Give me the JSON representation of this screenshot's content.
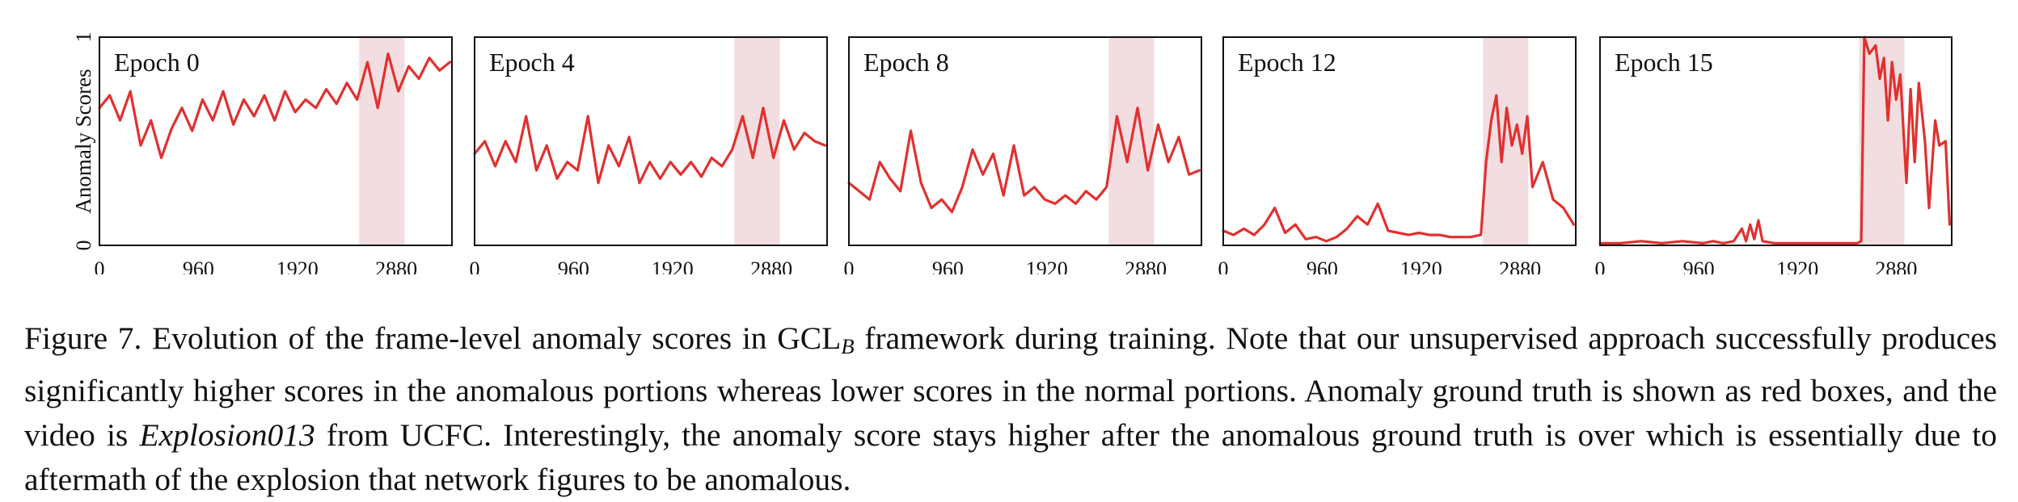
{
  "chart_data": [
    {
      "type": "line",
      "title": "Epoch 0",
      "ylabel": "Anomaly Scores",
      "ylim": [
        0,
        1
      ],
      "yticks": [
        "0",
        "1"
      ],
      "xlim": [
        0,
        3420
      ],
      "xticks": [
        0,
        960,
        1920,
        2880
      ],
      "xtick_labels": [
        "0",
        "960",
        "1920",
        "2880"
      ],
      "anomaly_region": [
        2520,
        2960
      ],
      "series": [
        {
          "values": [
            [
              0,
              0.66
            ],
            [
              100,
              0.72
            ],
            [
              200,
              0.6
            ],
            [
              300,
              0.74
            ],
            [
              400,
              0.48
            ],
            [
              500,
              0.6
            ],
            [
              600,
              0.42
            ],
            [
              700,
              0.56
            ],
            [
              800,
              0.66
            ],
            [
              900,
              0.55
            ],
            [
              1000,
              0.7
            ],
            [
              1100,
              0.6
            ],
            [
              1200,
              0.74
            ],
            [
              1300,
              0.58
            ],
            [
              1400,
              0.7
            ],
            [
              1500,
              0.62
            ],
            [
              1600,
              0.72
            ],
            [
              1700,
              0.6
            ],
            [
              1800,
              0.74
            ],
            [
              1900,
              0.64
            ],
            [
              2000,
              0.7
            ],
            [
              2100,
              0.66
            ],
            [
              2200,
              0.75
            ],
            [
              2300,
              0.68
            ],
            [
              2400,
              0.78
            ],
            [
              2500,
              0.7
            ],
            [
              2600,
              0.88
            ],
            [
              2700,
              0.66
            ],
            [
              2800,
              0.92
            ],
            [
              2900,
              0.74
            ],
            [
              3000,
              0.86
            ],
            [
              3100,
              0.8
            ],
            [
              3200,
              0.9
            ],
            [
              3300,
              0.84
            ],
            [
              3400,
              0.88
            ]
          ]
        }
      ]
    },
    {
      "type": "line",
      "title": "Epoch 4",
      "ylim": [
        0,
        1
      ],
      "xlim": [
        0,
        3420
      ],
      "xticks": [
        0,
        960,
        1920,
        2880
      ],
      "xtick_labels": [
        "0",
        "960",
        "1920",
        "2880"
      ],
      "anomaly_region": [
        2520,
        2960
      ],
      "series": [
        {
          "values": [
            [
              0,
              0.44
            ],
            [
              100,
              0.5
            ],
            [
              200,
              0.38
            ],
            [
              300,
              0.5
            ],
            [
              400,
              0.4
            ],
            [
              500,
              0.62
            ],
            [
              600,
              0.36
            ],
            [
              700,
              0.48
            ],
            [
              800,
              0.32
            ],
            [
              900,
              0.4
            ],
            [
              1000,
              0.36
            ],
            [
              1100,
              0.62
            ],
            [
              1200,
              0.3
            ],
            [
              1300,
              0.48
            ],
            [
              1400,
              0.38
            ],
            [
              1500,
              0.52
            ],
            [
              1600,
              0.3
            ],
            [
              1700,
              0.4
            ],
            [
              1800,
              0.32
            ],
            [
              1900,
              0.4
            ],
            [
              2000,
              0.34
            ],
            [
              2100,
              0.4
            ],
            [
              2200,
              0.33
            ],
            [
              2300,
              0.42
            ],
            [
              2400,
              0.38
            ],
            [
              2500,
              0.46
            ],
            [
              2600,
              0.62
            ],
            [
              2700,
              0.42
            ],
            [
              2800,
              0.66
            ],
            [
              2900,
              0.42
            ],
            [
              3000,
              0.6
            ],
            [
              3100,
              0.46
            ],
            [
              3200,
              0.54
            ],
            [
              3300,
              0.5
            ],
            [
              3400,
              0.48
            ]
          ]
        }
      ]
    },
    {
      "type": "line",
      "title": "Epoch 8",
      "ylim": [
        0,
        1
      ],
      "xlim": [
        0,
        3420
      ],
      "xticks": [
        0,
        960,
        1920,
        2880
      ],
      "xtick_labels": [
        "0",
        "960",
        "1920",
        "2880"
      ],
      "anomaly_region": [
        2520,
        2960
      ],
      "series": [
        {
          "values": [
            [
              0,
              0.3
            ],
            [
              100,
              0.26
            ],
            [
              200,
              0.22
            ],
            [
              300,
              0.4
            ],
            [
              400,
              0.32
            ],
            [
              500,
              0.26
            ],
            [
              600,
              0.55
            ],
            [
              700,
              0.3
            ],
            [
              800,
              0.18
            ],
            [
              900,
              0.22
            ],
            [
              1000,
              0.16
            ],
            [
              1100,
              0.28
            ],
            [
              1200,
              0.46
            ],
            [
              1300,
              0.34
            ],
            [
              1400,
              0.44
            ],
            [
              1500,
              0.24
            ],
            [
              1600,
              0.48
            ],
            [
              1700,
              0.24
            ],
            [
              1800,
              0.28
            ],
            [
              1900,
              0.22
            ],
            [
              2000,
              0.2
            ],
            [
              2100,
              0.24
            ],
            [
              2200,
              0.2
            ],
            [
              2300,
              0.26
            ],
            [
              2400,
              0.22
            ],
            [
              2500,
              0.28
            ],
            [
              2600,
              0.62
            ],
            [
              2700,
              0.4
            ],
            [
              2800,
              0.66
            ],
            [
              2900,
              0.36
            ],
            [
              3000,
              0.58
            ],
            [
              3100,
              0.4
            ],
            [
              3200,
              0.52
            ],
            [
              3300,
              0.34
            ],
            [
              3400,
              0.36
            ]
          ]
        }
      ]
    },
    {
      "type": "line",
      "title": "Epoch 12",
      "ylim": [
        0,
        1
      ],
      "xlim": [
        0,
        3420
      ],
      "xticks": [
        0,
        960,
        1920,
        2880
      ],
      "xtick_labels": [
        "0",
        "960",
        "1920",
        "2880"
      ],
      "anomaly_region": [
        2520,
        2960
      ],
      "series": [
        {
          "values": [
            [
              0,
              0.07
            ],
            [
              100,
              0.05
            ],
            [
              200,
              0.08
            ],
            [
              300,
              0.05
            ],
            [
              400,
              0.1
            ],
            [
              500,
              0.18
            ],
            [
              600,
              0.06
            ],
            [
              700,
              0.1
            ],
            [
              800,
              0.03
            ],
            [
              900,
              0.04
            ],
            [
              1000,
              0.02
            ],
            [
              1100,
              0.04
            ],
            [
              1200,
              0.08
            ],
            [
              1300,
              0.14
            ],
            [
              1400,
              0.1
            ],
            [
              1500,
              0.2
            ],
            [
              1600,
              0.07
            ],
            [
              1700,
              0.06
            ],
            [
              1800,
              0.05
            ],
            [
              1900,
              0.06
            ],
            [
              2000,
              0.05
            ],
            [
              2100,
              0.05
            ],
            [
              2200,
              0.04
            ],
            [
              2300,
              0.04
            ],
            [
              2400,
              0.04
            ],
            [
              2500,
              0.05
            ],
            [
              2550,
              0.4
            ],
            [
              2600,
              0.6
            ],
            [
              2650,
              0.72
            ],
            [
              2700,
              0.4
            ],
            [
              2750,
              0.66
            ],
            [
              2800,
              0.48
            ],
            [
              2850,
              0.58
            ],
            [
              2900,
              0.44
            ],
            [
              2950,
              0.62
            ],
            [
              3000,
              0.28
            ],
            [
              3100,
              0.4
            ],
            [
              3200,
              0.22
            ],
            [
              3300,
              0.18
            ],
            [
              3400,
              0.1
            ]
          ]
        }
      ]
    },
    {
      "type": "line",
      "title": "Epoch 15",
      "ylim": [
        0,
        1
      ],
      "xlim": [
        0,
        3420
      ],
      "xticks": [
        0,
        960,
        1920,
        2880
      ],
      "xtick_labels": [
        "0",
        "960",
        "1920",
        "2880"
      ],
      "anomaly_region": [
        2520,
        2960
      ],
      "series": [
        {
          "values": [
            [
              0,
              0.01
            ],
            [
              200,
              0.01
            ],
            [
              400,
              0.02
            ],
            [
              600,
              0.01
            ],
            [
              800,
              0.02
            ],
            [
              1000,
              0.01
            ],
            [
              1100,
              0.02
            ],
            [
              1200,
              0.01
            ],
            [
              1300,
              0.02
            ],
            [
              1380,
              0.08
            ],
            [
              1420,
              0.02
            ],
            [
              1460,
              0.1
            ],
            [
              1500,
              0.03
            ],
            [
              1540,
              0.12
            ],
            [
              1580,
              0.02
            ],
            [
              1700,
              0.01
            ],
            [
              1900,
              0.01
            ],
            [
              2100,
              0.01
            ],
            [
              2300,
              0.01
            ],
            [
              2500,
              0.01
            ],
            [
              2540,
              0.02
            ],
            [
              2570,
              1.0
            ],
            [
              2620,
              0.92
            ],
            [
              2680,
              0.96
            ],
            [
              2720,
              0.8
            ],
            [
              2760,
              0.9
            ],
            [
              2800,
              0.6
            ],
            [
              2840,
              0.88
            ],
            [
              2880,
              0.7
            ],
            [
              2920,
              0.82
            ],
            [
              2980,
              0.3
            ],
            [
              3020,
              0.75
            ],
            [
              3060,
              0.4
            ],
            [
              3100,
              0.78
            ],
            [
              3160,
              0.5
            ],
            [
              3200,
              0.18
            ],
            [
              3260,
              0.6
            ],
            [
              3300,
              0.48
            ],
            [
              3360,
              0.5
            ],
            [
              3400,
              0.1
            ]
          ]
        }
      ]
    }
  ],
  "caption": {
    "prefix": "Figure 7. Evolution of the frame-level anomaly scores in GCL",
    "sub": "B",
    "middle": " framework during training. Note that our unsupervised approach successfully produces significantly higher scores in the anomalous portions whereas lower scores in the normal portions. Anomaly ground truth is shown as red boxes, and the video is ",
    "italic": "Explosion013",
    "suffix": " from UCFC. Interestingly, the anomaly score stays higher after the anomalous ground truth is over which is essentially due to aftermath of the explosion that network figures to be anomalous."
  }
}
